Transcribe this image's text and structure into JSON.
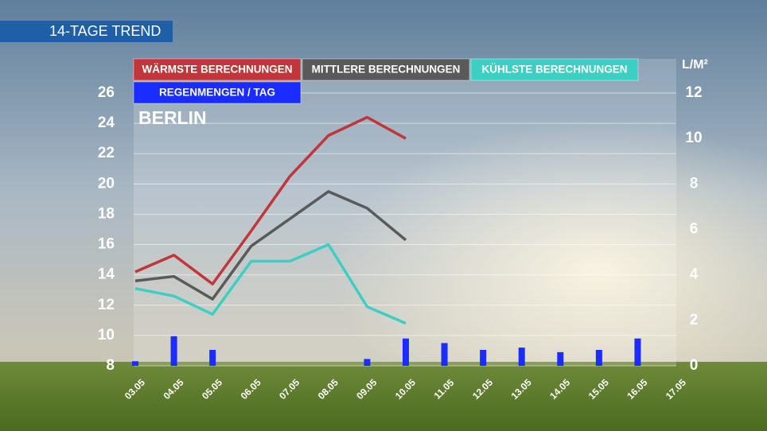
{
  "chart_data": {
    "type": "line",
    "title": "14-TAGE TREND",
    "subtitle": "BERLIN",
    "y2_label": "L/M²",
    "categories": [
      "03.05",
      "04.05",
      "05.05",
      "06.05",
      "07.05",
      "08.05",
      "09.05",
      "10.05",
      "11.05",
      "12.05",
      "13.05",
      "14.05",
      "15.05",
      "16.05",
      "17.05"
    ],
    "series": [
      {
        "name": "WÄRMSTE BERECHNUNGEN",
        "color": "#c0363a",
        "values": [
          14.2,
          15.3,
          13.4,
          16.9,
          20.5,
          23.2,
          24.4,
          23.0,
          null,
          null,
          null,
          null,
          null,
          null,
          null
        ]
      },
      {
        "name": "MITTLERE  BERECHNUNGEN",
        "color": "#5a5a5a",
        "values": [
          13.6,
          13.9,
          12.4,
          15.9,
          17.7,
          19.5,
          18.4,
          16.3,
          null,
          null,
          null,
          null,
          null,
          null,
          null
        ]
      },
      {
        "name": "KÜHLSTE BERECHNUNGEN",
        "color": "#3ccfc4",
        "values": [
          13.1,
          12.6,
          11.4,
          14.9,
          14.9,
          16.0,
          11.9,
          10.8,
          null,
          null,
          null,
          null,
          null,
          null,
          null
        ]
      },
      {
        "name": "REGENMENGEN / TAG",
        "color": "#1a2cff",
        "type": "bar",
        "axis": "y2",
        "values": [
          0.2,
          1.3,
          0.7,
          null,
          null,
          null,
          0.3,
          1.2,
          1.0,
          0.7,
          0.8,
          0.6,
          0.7,
          1.2,
          null
        ]
      }
    ],
    "ylim": [
      8,
      26
    ],
    "yticks": [
      8,
      10,
      12,
      14,
      16,
      18,
      20,
      22,
      24,
      26
    ],
    "y2lim": [
      0,
      12
    ],
    "y2ticks": [
      0,
      2,
      4,
      6,
      8,
      10,
      12
    ],
    "grid": true
  }
}
